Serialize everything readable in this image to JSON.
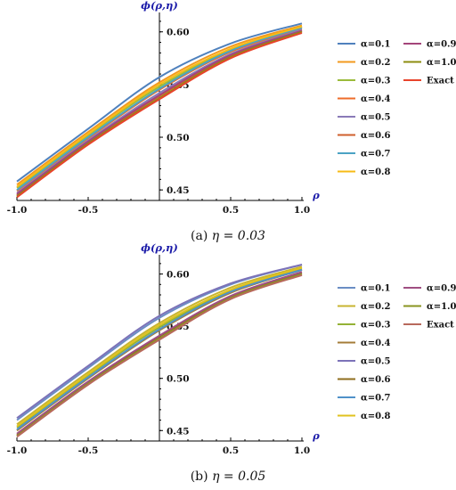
{
  "chart_data": [
    {
      "type": "line",
      "caption_label": "(a)",
      "caption_eq": "η = 0.03",
      "xlabel": "ρ",
      "ylabel": "ϕ(ρ,η)",
      "xlim": [
        -1.0,
        1.0
      ],
      "ylim": [
        0.44,
        0.615
      ],
      "xticks": [
        "-1.0",
        "-0.5",
        "0.5",
        "1.0"
      ],
      "xtick_values": [
        -1.0,
        -0.5,
        0.5,
        1.0
      ],
      "yticks": [
        "0.45",
        "0.50",
        "0.55",
        "0.60"
      ],
      "ytick_values": [
        0.45,
        0.5,
        0.55,
        0.6
      ],
      "legend": "right",
      "x": [
        -1.0,
        -0.5,
        0.0,
        0.5,
        1.0
      ],
      "series": [
        {
          "name": "α=0.1",
          "color": "#4f81bd",
          "values": [
            0.458,
            0.508,
            0.557,
            0.589,
            0.608
          ]
        },
        {
          "name": "α=0.2",
          "color": "#f39a1e",
          "values": [
            0.455,
            0.505,
            0.552,
            0.586,
            0.606
          ]
        },
        {
          "name": "α=0.3",
          "color": "#9bbb3b",
          "values": [
            0.452,
            0.502,
            0.548,
            0.583,
            0.605
          ]
        },
        {
          "name": "α=0.4",
          "color": "#ee6c2a",
          "values": [
            0.449,
            0.499,
            0.545,
            0.581,
            0.603
          ]
        },
        {
          "name": "α=0.5",
          "color": "#8a7ab8",
          "values": [
            0.447,
            0.497,
            0.542,
            0.579,
            0.602
          ]
        },
        {
          "name": "α=0.6",
          "color": "#cf5f2c",
          "values": [
            0.445,
            0.495,
            0.539,
            0.577,
            0.601
          ]
        },
        {
          "name": "α=0.7",
          "color": "#4ba3c4",
          "values": [
            0.45,
            0.5,
            0.546,
            0.582,
            0.604
          ]
        },
        {
          "name": "α=0.8",
          "color": "#f7bb16",
          "values": [
            0.453,
            0.503,
            0.55,
            0.584,
            0.605
          ]
        },
        {
          "name": "α=0.9",
          "color": "#a4457a",
          "values": [
            0.446,
            0.496,
            0.54,
            0.578,
            0.601
          ]
        },
        {
          "name": "α=1.0",
          "color": "#8c8c10",
          "values": [
            0.444,
            0.494,
            0.537,
            0.576,
            0.6
          ]
        },
        {
          "name": "Exact",
          "color": "#e8442c",
          "values": [
            0.443,
            0.493,
            0.536,
            0.575,
            0.599
          ]
        }
      ]
    },
    {
      "type": "line",
      "caption_label": "(b)",
      "caption_eq": "η = 0.05",
      "xlabel": "ρ",
      "ylabel": "ϕ(ρ,η)",
      "xlim": [
        -1.0,
        1.0
      ],
      "ylim": [
        0.44,
        0.615
      ],
      "xticks": [
        "-1.0",
        "-0.5",
        "0.5",
        "1.0"
      ],
      "xtick_values": [
        -1.0,
        -0.5,
        0.5,
        1.0
      ],
      "yticks": [
        "0.45",
        "0.50",
        "0.55",
        "0.60"
      ],
      "ytick_values": [
        0.45,
        0.5,
        0.55,
        0.6
      ],
      "legend": "right",
      "x": [
        -1.0,
        -0.5,
        0.0,
        0.5,
        1.0
      ],
      "series": [
        {
          "name": "α=0.1",
          "color": "#6b8ec4",
          "values": [
            0.46,
            0.51,
            0.558,
            0.59,
            0.609
          ]
        },
        {
          "name": "α=0.2",
          "color": "#c8b430",
          "values": [
            0.456,
            0.506,
            0.553,
            0.587,
            0.607
          ]
        },
        {
          "name": "α=0.3",
          "color": "#94b236",
          "values": [
            0.453,
            0.503,
            0.549,
            0.584,
            0.605
          ]
        },
        {
          "name": "α=0.4",
          "color": "#a57c38",
          "values": [
            0.45,
            0.5,
            0.546,
            0.582,
            0.604
          ]
        },
        {
          "name": "α=0.5",
          "color": "#7c72b8",
          "values": [
            0.462,
            0.512,
            0.56,
            0.591,
            0.609
          ]
        },
        {
          "name": "α=0.6",
          "color": "#8f6d1e",
          "values": [
            0.446,
            0.496,
            0.54,
            0.578,
            0.601
          ]
        },
        {
          "name": "α=0.7",
          "color": "#4f91c9",
          "values": [
            0.451,
            0.501,
            0.547,
            0.583,
            0.604
          ]
        },
        {
          "name": "α=0.8",
          "color": "#e0c21e",
          "values": [
            0.454,
            0.504,
            0.551,
            0.585,
            0.606
          ]
        },
        {
          "name": "α=0.9",
          "color": "#a04f82",
          "values": [
            0.447,
            0.497,
            0.541,
            0.579,
            0.602
          ]
        },
        {
          "name": "α=1.0",
          "color": "#8a9420",
          "values": [
            0.445,
            0.495,
            0.538,
            0.577,
            0.6
          ]
        },
        {
          "name": "Exact",
          "color": "#b8695c",
          "values": [
            0.444,
            0.494,
            0.537,
            0.576,
            0.599
          ]
        }
      ]
    }
  ]
}
